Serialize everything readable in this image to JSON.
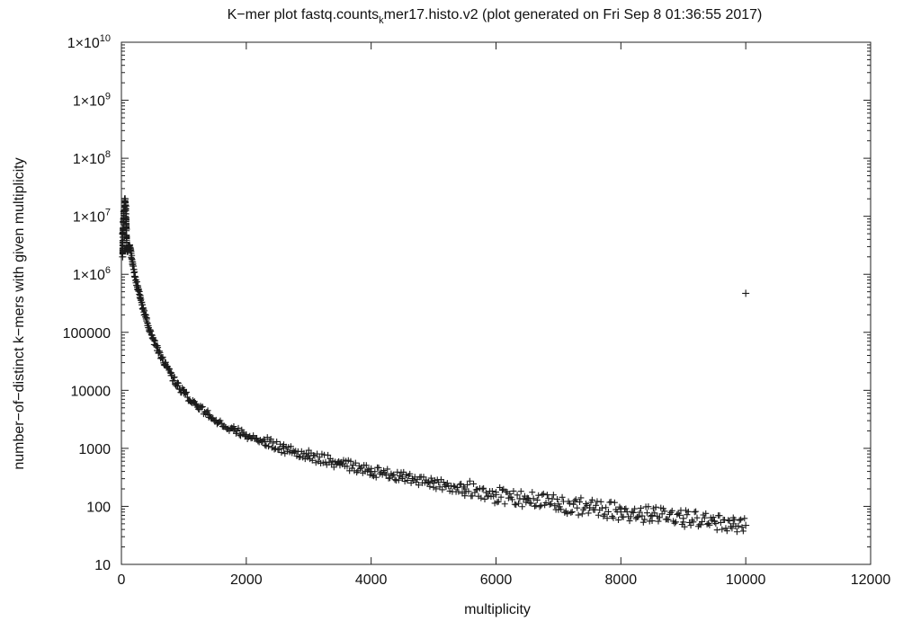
{
  "chart_data": {
    "type": "scatter",
    "title": {
      "main": "K−mer plot fastq.counts",
      "subscript": "k",
      "rest": "mer17.histo.v2 (plot generated on Fri Sep  8 01:36:55 2017)"
    },
    "xlabel": "multiplicity",
    "ylabel": "number−of−distinct k−mers with given multiplicity",
    "xlim": [
      0,
      12000
    ],
    "ylim": [
      10,
      10000000000
    ],
    "yscale": "log",
    "grid": false,
    "legend": "none",
    "marker": "+",
    "color": "#1a1a1a",
    "x_ticks": [
      {
        "value": 0,
        "label": "0"
      },
      {
        "value": 2000,
        "label": "2000"
      },
      {
        "value": 4000,
        "label": "4000"
      },
      {
        "value": 6000,
        "label": "6000"
      },
      {
        "value": 8000,
        "label": "8000"
      },
      {
        "value": 10000,
        "label": "10000"
      },
      {
        "value": 12000,
        "label": "12000"
      }
    ],
    "y_ticks": [
      {
        "value": 10,
        "label": "10",
        "mant": "",
        "exp": ""
      },
      {
        "value": 100,
        "label": "100",
        "mant": "",
        "exp": ""
      },
      {
        "value": 1000,
        "label": "1000",
        "mant": "",
        "exp": ""
      },
      {
        "value": 10000,
        "label": "10000",
        "mant": "",
        "exp": ""
      },
      {
        "value": 100000,
        "label": "100000",
        "mant": "",
        "exp": ""
      },
      {
        "value": 1000000,
        "label": "",
        "mant": "1×10",
        "exp": "6"
      },
      {
        "value": 10000000,
        "label": "",
        "mant": "1×10",
        "exp": "7"
      },
      {
        "value": 100000000,
        "label": "",
        "mant": "1×10",
        "exp": "8"
      },
      {
        "value": 1000000000,
        "label": "",
        "mant": "1×10",
        "exp": "9"
      },
      {
        "value": 10000000000,
        "label": "",
        "mant": "1×10",
        "exp": "10"
      }
    ],
    "points": [
      {
        "x": 20,
        "y": 2000000
      },
      {
        "x": 20,
        "y": 5000000
      },
      {
        "x": 30,
        "y": 8000000
      },
      {
        "x": 40,
        "y": 12000000
      },
      {
        "x": 50,
        "y": 18000000
      },
      {
        "x": 60,
        "y": 20000000
      },
      {
        "x": 70,
        "y": 15000000
      },
      {
        "x": 80,
        "y": 6000000
      },
      {
        "x": 90,
        "y": 2500000
      },
      {
        "x": 110,
        "y": 3000000
      },
      {
        "x": 130,
        "y": 3200000
      },
      {
        "x": 150,
        "y": 2500000
      },
      {
        "x": 180,
        "y": 1500000
      },
      {
        "x": 220,
        "y": 900000
      },
      {
        "x": 260,
        "y": 600000
      },
      {
        "x": 300,
        "y": 400000
      },
      {
        "x": 350,
        "y": 250000
      },
      {
        "x": 400,
        "y": 170000
      },
      {
        "x": 450,
        "y": 110000
      },
      {
        "x": 500,
        "y": 80000
      },
      {
        "x": 600,
        "y": 45000
      },
      {
        "x": 700,
        "y": 28000
      },
      {
        "x": 800,
        "y": 18000
      },
      {
        "x": 900,
        "y": 12000
      },
      {
        "x": 1000,
        "y": 9000
      },
      {
        "x": 1200,
        "y": 5500
      },
      {
        "x": 1400,
        "y": 3800
      },
      {
        "x": 1600,
        "y": 2700
      },
      {
        "x": 1800,
        "y": 2100
      },
      {
        "x": 2000,
        "y": 1700
      },
      {
        "x": 2300,
        "y": 1300
      },
      {
        "x": 2600,
        "y": 1000
      },
      {
        "x": 3000,
        "y": 750
      },
      {
        "x": 3500,
        "y": 550
      },
      {
        "x": 4000,
        "y": 400
      },
      {
        "x": 4500,
        "y": 320
      },
      {
        "x": 5000,
        "y": 250
      },
      {
        "x": 5500,
        "y": 200
      },
      {
        "x": 6000,
        "y": 160
      },
      {
        "x": 6500,
        "y": 130
      },
      {
        "x": 7000,
        "y": 110
      },
      {
        "x": 7500,
        "y": 95
      },
      {
        "x": 8000,
        "y": 80
      },
      {
        "x": 8500,
        "y": 70
      },
      {
        "x": 9000,
        "y": 62
      },
      {
        "x": 9500,
        "y": 55
      },
      {
        "x": 9800,
        "y": 50
      },
      {
        "x": 10000,
        "y": 47
      },
      {
        "x": 10000,
        "y": 470000
      }
    ]
  }
}
